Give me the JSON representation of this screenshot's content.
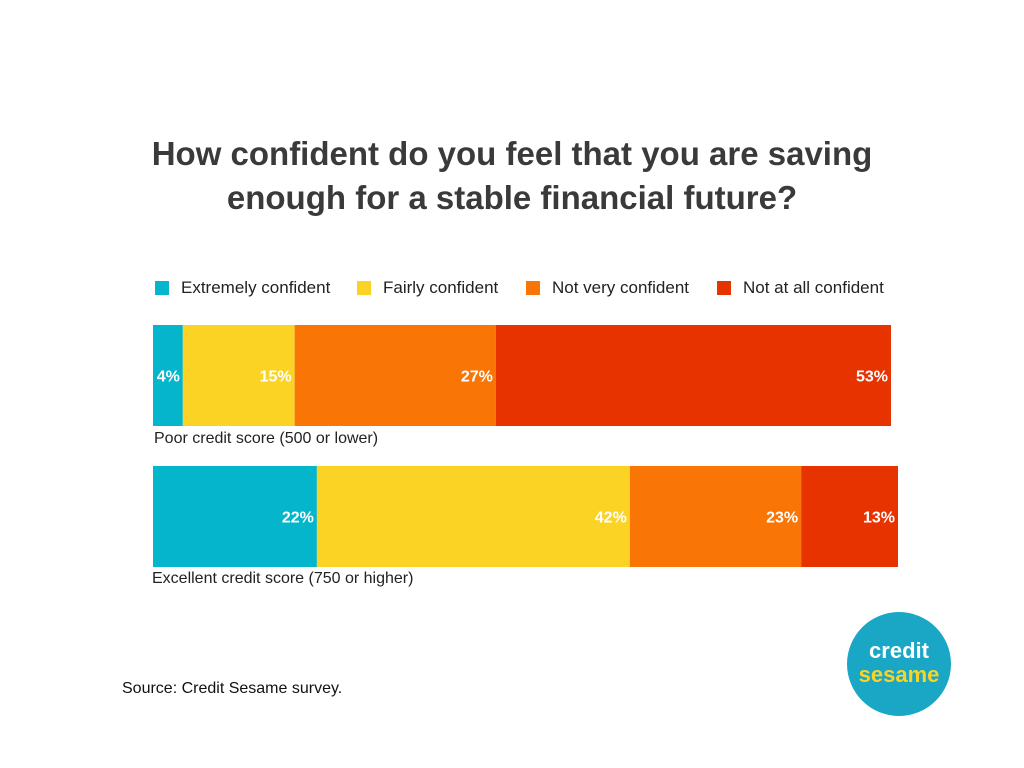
{
  "chart_data": {
    "type": "bar",
    "orientation": "horizontal",
    "stacked": true,
    "title_line1": "How confident do you feel that you are saving",
    "title_line2": "enough for a stable financial future?",
    "categories": [
      "Poor credit score (500 or lower)",
      "Excellent credit score (750 or higher)"
    ],
    "series": [
      {
        "name": "Extremely confident",
        "color": "#05b5cc",
        "values": [
          4,
          22
        ]
      },
      {
        "name": "Fairly confident",
        "color": "#fbd324",
        "values": [
          15,
          42
        ]
      },
      {
        "name": "Not very confident",
        "color": "#f97506",
        "values": [
          27,
          23
        ]
      },
      {
        "name": "Not at all confident",
        "color": "#e63300",
        "values": [
          53,
          13
        ]
      }
    ],
    "value_suffix": "%",
    "legend_position": "top",
    "grid": false,
    "xlim": [
      0,
      100
    ]
  },
  "source": "Source: Credit Sesame survey.",
  "logo": {
    "line1": "credit",
    "line2": "sesame",
    "background": "#1aa7c5",
    "line1_color": "#ffffff",
    "line2_color": "#fbd324"
  }
}
